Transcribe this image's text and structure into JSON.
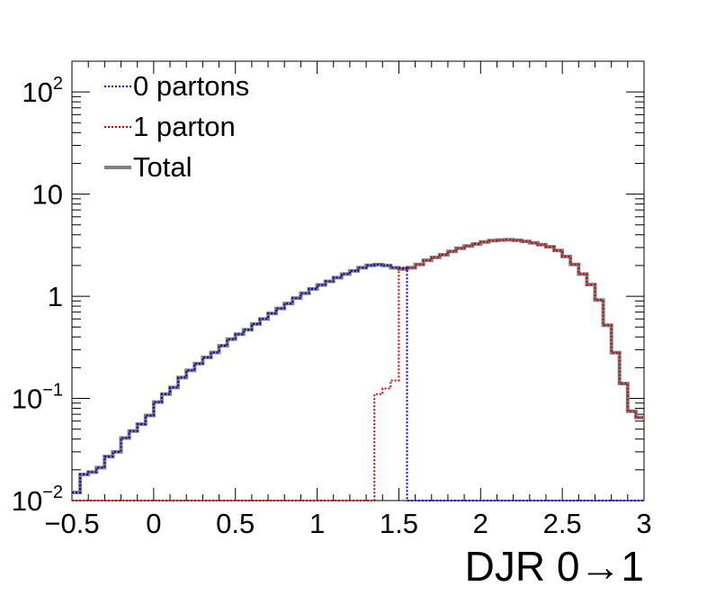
{
  "chart_data": {
    "type": "line",
    "xlabel": "DJR 0→1",
    "x_ticks": [
      "−0.5",
      "0",
      "0.5",
      "1",
      "1.5",
      "2",
      "2.5",
      "3"
    ],
    "x_tick_values": [
      -0.5,
      0,
      0.5,
      1,
      1.5,
      2,
      2.5,
      3
    ],
    "xlim": [
      -0.5,
      3
    ],
    "ylim": [
      0.01,
      200
    ],
    "y_scale": "log",
    "y_ticks": [
      {
        "value": 0.01,
        "base": "10",
        "exp": "−2"
      },
      {
        "value": 0.1,
        "base": "10",
        "exp": "−1"
      },
      {
        "value": 1,
        "base": "1",
        "exp": ""
      },
      {
        "value": 10,
        "base": "10",
        "exp": ""
      },
      {
        "value": 100,
        "base": "10",
        "exp": "2"
      }
    ],
    "grid": false,
    "legend_position": "top-left",
    "bin_width": 0.05,
    "x_bin_edges_start": -0.5,
    "series": [
      {
        "name": "0 partons",
        "color": "#0000cc",
        "style": "dotted",
        "values": [
          0.012,
          0.018,
          0.019,
          0.021,
          0.027,
          0.03,
          0.041,
          0.048,
          0.056,
          0.068,
          0.092,
          0.11,
          0.128,
          0.16,
          0.188,
          0.219,
          0.252,
          0.282,
          0.328,
          0.38,
          0.425,
          0.47,
          0.535,
          0.6,
          0.68,
          0.76,
          0.85,
          0.96,
          1.07,
          1.18,
          1.29,
          1.4,
          1.52,
          1.65,
          1.77,
          1.9,
          2.01,
          2.04,
          2.0,
          1.9,
          1.9,
          0.01,
          0.01,
          0.01,
          0.01,
          0.01,
          0.01,
          0.01,
          0.01,
          0.01,
          0.01,
          0.01,
          0.01,
          0.01,
          0.01,
          0.01,
          0.01,
          0.01,
          0.01,
          0.01,
          0.01,
          0.01,
          0.01,
          0.01,
          0.01,
          0.01,
          0.01,
          0.01,
          0.01,
          0.01
        ]
      },
      {
        "name": "1 parton",
        "color": "#cc0000",
        "style": "dotted",
        "values": [
          0.01,
          0.01,
          0.01,
          0.01,
          0.01,
          0.01,
          0.01,
          0.01,
          0.01,
          0.01,
          0.01,
          0.01,
          0.01,
          0.01,
          0.01,
          0.01,
          0.01,
          0.01,
          0.01,
          0.01,
          0.01,
          0.01,
          0.01,
          0.01,
          0.01,
          0.01,
          0.01,
          0.01,
          0.01,
          0.01,
          0.01,
          0.01,
          0.01,
          0.01,
          0.01,
          0.01,
          0.01,
          0.11,
          0.125,
          0.15,
          1.85,
          1.9,
          2.05,
          2.25,
          2.4,
          2.55,
          2.75,
          2.95,
          3.1,
          3.25,
          3.4,
          3.5,
          3.55,
          3.58,
          3.53,
          3.45,
          3.33,
          3.2,
          3.05,
          2.8,
          2.45,
          2.05,
          1.65,
          1.3,
          0.92,
          0.52,
          0.28,
          0.14,
          0.075,
          0.065
        ]
      },
      {
        "name": "Total",
        "color": "#808080",
        "style": "solid",
        "values": [
          0.012,
          0.018,
          0.019,
          0.021,
          0.027,
          0.03,
          0.041,
          0.048,
          0.056,
          0.068,
          0.092,
          0.11,
          0.128,
          0.16,
          0.188,
          0.219,
          0.252,
          0.282,
          0.328,
          0.38,
          0.425,
          0.47,
          0.535,
          0.6,
          0.68,
          0.76,
          0.85,
          0.96,
          1.07,
          1.18,
          1.29,
          1.4,
          1.52,
          1.65,
          1.77,
          1.9,
          2.01,
          2.04,
          2.0,
          1.9,
          1.85,
          1.9,
          2.05,
          2.25,
          2.4,
          2.55,
          2.75,
          2.95,
          3.1,
          3.25,
          3.4,
          3.5,
          3.55,
          3.58,
          3.53,
          3.45,
          3.33,
          3.2,
          3.05,
          2.8,
          2.45,
          2.05,
          1.65,
          1.3,
          0.92,
          0.52,
          0.28,
          0.14,
          0.075,
          0.065
        ]
      }
    ]
  }
}
